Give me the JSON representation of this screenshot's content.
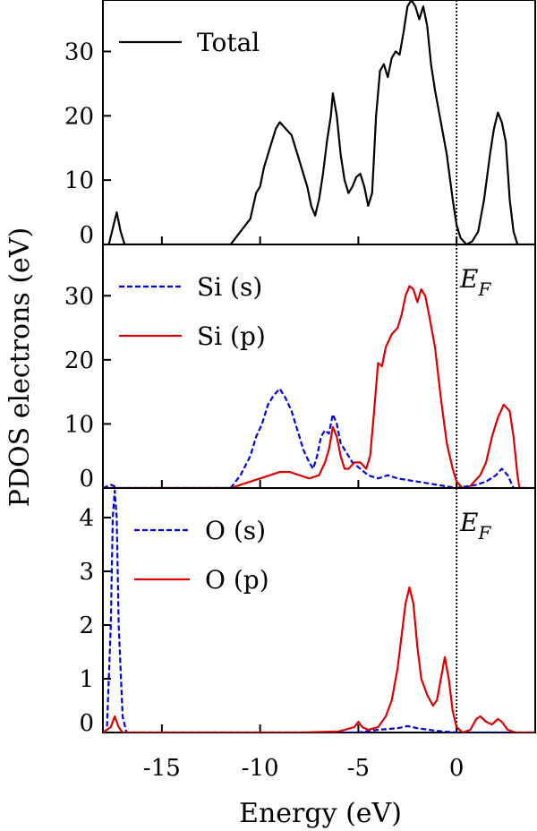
{
  "chart_data": {
    "type": "line",
    "xlabel": "Energy (eV)",
    "ylabel": "PDOS electrons (eV)",
    "xlim": [
      -18,
      4
    ],
    "xticks": [
      -15,
      -10,
      -5,
      0
    ],
    "fermi_level": 0,
    "fermi_label": "E",
    "fermi_label_sub": "F",
    "panels": [
      {
        "ylim": [
          0,
          38
        ],
        "yticks": [
          0,
          10,
          20,
          30
        ],
        "legend_position": "top-left",
        "show_fermi_label": false,
        "series": [
          {
            "name": "Total",
            "color": "#000000",
            "dash": "solid",
            "points": [
              [
                -18,
                0
              ],
              [
                -17.7,
                0
              ],
              [
                -17.5,
                2.5
              ],
              [
                -17.3,
                5
              ],
              [
                -17.1,
                2
              ],
              [
                -16.9,
                0
              ],
              [
                -12,
                0
              ],
              [
                -11.5,
                0
              ],
              [
                -11,
                2
              ],
              [
                -10.5,
                4
              ],
              [
                -10.2,
                8
              ],
              [
                -10,
                9
              ],
              [
                -9.8,
                12
              ],
              [
                -9.5,
                15
              ],
              [
                -9.2,
                18
              ],
              [
                -9,
                19
              ],
              [
                -8.7,
                18
              ],
              [
                -8.4,
                17
              ],
              [
                -8.1,
                14
              ],
              [
                -7.8,
                11
              ],
              [
                -7.6,
                9
              ],
              [
                -7.4,
                6
              ],
              [
                -7.2,
                4.5
              ],
              [
                -7,
                7
              ],
              [
                -6.8,
                11
              ],
              [
                -6.6,
                16
              ],
              [
                -6.4,
                20
              ],
              [
                -6.3,
                23.5
              ],
              [
                -6.1,
                20
              ],
              [
                -5.9,
                14
              ],
              [
                -5.7,
                10
              ],
              [
                -5.5,
                8
              ],
              [
                -5.3,
                9
              ],
              [
                -5.1,
                10.5
              ],
              [
                -4.9,
                11
              ],
              [
                -4.7,
                9
              ],
              [
                -4.5,
                6
              ],
              [
                -4.3,
                8
              ],
              [
                -4.1,
                20
              ],
              [
                -3.9,
                27
              ],
              [
                -3.7,
                28
              ],
              [
                -3.5,
                26
              ],
              [
                -3.3,
                29
              ],
              [
                -3.1,
                30
              ],
              [
                -2.9,
                29.5
              ],
              [
                -2.7,
                33
              ],
              [
                -2.5,
                37
              ],
              [
                -2.3,
                38
              ],
              [
                -2.1,
                37
              ],
              [
                -1.9,
                35
              ],
              [
                -1.7,
                37
              ],
              [
                -1.5,
                34
              ],
              [
                -1.3,
                28
              ],
              [
                -1.1,
                24
              ],
              [
                -0.8,
                19
              ],
              [
                -0.5,
                14
              ],
              [
                -0.2,
                7
              ],
              [
                0,
                3
              ],
              [
                0.2,
                1
              ],
              [
                0.5,
                0
              ],
              [
                0.8,
                0.5
              ],
              [
                1.1,
                2
              ],
              [
                1.4,
                7
              ],
              [
                1.7,
                14
              ],
              [
                1.9,
                18
              ],
              [
                2.1,
                20.5
              ],
              [
                2.3,
                19
              ],
              [
                2.5,
                16
              ],
              [
                2.7,
                7
              ],
              [
                2.9,
                2
              ],
              [
                3.1,
                0
              ],
              [
                4,
                0
              ]
            ]
          }
        ]
      },
      {
        "ylim": [
          0,
          38
        ],
        "yticks": [
          0,
          10,
          20,
          30
        ],
        "legend_position": "top-left",
        "show_fermi_label": true,
        "series": [
          {
            "name": "Si (s)",
            "color": "#0000dd",
            "dash": "dashed",
            "points": [
              [
                -18,
                0
              ],
              [
                -17.6,
                0.5
              ],
              [
                -17.2,
                0
              ],
              [
                -11.5,
                0
              ],
              [
                -11,
                2
              ],
              [
                -10.5,
                5
              ],
              [
                -10.2,
                8
              ],
              [
                -9.9,
                10
              ],
              [
                -9.6,
                13
              ],
              [
                -9.3,
                14.5
              ],
              [
                -9,
                15.5
              ],
              [
                -8.7,
                14
              ],
              [
                -8.4,
                12
              ],
              [
                -8.1,
                9
              ],
              [
                -7.8,
                6
              ],
              [
                -7.5,
                4
              ],
              [
                -7.3,
                3
              ],
              [
                -7.1,
                5
              ],
              [
                -6.9,
                8
              ],
              [
                -6.7,
                9
              ],
              [
                -6.5,
                8.5
              ],
              [
                -6.3,
                11.5
              ],
              [
                -6.1,
                10
              ],
              [
                -5.9,
                7
              ],
              [
                -5.7,
                6
              ],
              [
                -5.5,
                5
              ],
              [
                -5.3,
                4
              ],
              [
                -5.1,
                3.5
              ],
              [
                -4.9,
                3
              ],
              [
                -4.5,
                2
              ],
              [
                -4,
                1.5
              ],
              [
                -3.5,
                2
              ],
              [
                -3,
                1.5
              ],
              [
                -2,
                1
              ],
              [
                -1,
                0.5
              ],
              [
                0,
                0
              ],
              [
                1,
                0.5
              ],
              [
                1.5,
                1
              ],
              [
                2,
                2
              ],
              [
                2.3,
                3
              ],
              [
                2.6,
                2
              ],
              [
                2.9,
                0
              ],
              [
                3.5,
                0
              ]
            ]
          },
          {
            "name": "Si (p)",
            "color": "#dd0000",
            "dash": "solid",
            "points": [
              [
                -18,
                0
              ],
              [
                -11.5,
                0
              ],
              [
                -11,
                0.5
              ],
              [
                -10.5,
                1
              ],
              [
                -10,
                1.5
              ],
              [
                -9.5,
                2
              ],
              [
                -9,
                2.5
              ],
              [
                -8.5,
                2.5
              ],
              [
                -8,
                2
              ],
              [
                -7.5,
                1.5
              ],
              [
                -7,
                2
              ],
              [
                -6.7,
                4
              ],
              [
                -6.5,
                6
              ],
              [
                -6.3,
                9.5
              ],
              [
                -6.1,
                8
              ],
              [
                -5.9,
                5
              ],
              [
                -5.7,
                3
              ],
              [
                -5.5,
                3
              ],
              [
                -5.2,
                4
              ],
              [
                -4.9,
                4
              ],
              [
                -4.6,
                3
              ],
              [
                -4.4,
                5
              ],
              [
                -4.2,
                12
              ],
              [
                -4,
                19.5
              ],
              [
                -3.8,
                19
              ],
              [
                -3.6,
                22
              ],
              [
                -3.3,
                24
              ],
              [
                -3,
                25
              ],
              [
                -2.8,
                27
              ],
              [
                -2.6,
                30
              ],
              [
                -2.4,
                31.5
              ],
              [
                -2.2,
                31
              ],
              [
                -2,
                29
              ],
              [
                -1.8,
                31
              ],
              [
                -1.6,
                30
              ],
              [
                -1.4,
                27
              ],
              [
                -1.1,
                22
              ],
              [
                -0.8,
                14
              ],
              [
                -0.5,
                7
              ],
              [
                -0.2,
                3
              ],
              [
                0,
                1
              ],
              [
                0.3,
                0
              ],
              [
                0.6,
                0
              ],
              [
                0.9,
                1
              ],
              [
                1.2,
                2
              ],
              [
                1.5,
                4
              ],
              [
                1.8,
                8
              ],
              [
                2.1,
                11
              ],
              [
                2.4,
                13
              ],
              [
                2.7,
                12
              ],
              [
                2.9,
                8
              ],
              [
                3.1,
                2
              ],
              [
                3.2,
                0
              ],
              [
                4,
                0
              ]
            ]
          }
        ]
      },
      {
        "ylim": [
          0,
          4.55
        ],
        "yticks": [
          0,
          1,
          2,
          3,
          4
        ],
        "legend_position": "top-left",
        "show_fermi_label": true,
        "series": [
          {
            "name": "O (s)",
            "color": "#0000dd",
            "dash": "dashed",
            "points": [
              [
                -18,
                0
              ],
              [
                -17.8,
                0.05
              ],
              [
                -17.6,
                2
              ],
              [
                -17.5,
                4
              ],
              [
                -17.4,
                4.5
              ],
              [
                -17.3,
                4
              ],
              [
                -17.2,
                2
              ],
              [
                -17,
                0.3
              ],
              [
                -16.8,
                0
              ],
              [
                -5,
                0
              ],
              [
                -4,
                0.05
              ],
              [
                -3,
                0.08
              ],
              [
                -2.5,
                0.12
              ],
              [
                -2,
                0.08
              ],
              [
                -1,
                0.03
              ],
              [
                0,
                0
              ],
              [
                1,
                0
              ],
              [
                4,
                0
              ]
            ]
          },
          {
            "name": "O (p)",
            "color": "#dd0000",
            "dash": "solid",
            "points": [
              [
                -18,
                0
              ],
              [
                -17.6,
                0.1
              ],
              [
                -17.4,
                0.3
              ],
              [
                -17.2,
                0.1
              ],
              [
                -17,
                0
              ],
              [
                -8,
                0
              ],
              [
                -6,
                0.02
              ],
              [
                -5.2,
                0.1
              ],
              [
                -5,
                0.2
              ],
              [
                -4.8,
                0.1
              ],
              [
                -4.5,
                0.05
              ],
              [
                -4,
                0.1
              ],
              [
                -3.6,
                0.3
              ],
              [
                -3.3,
                0.6
              ],
              [
                -3,
                1.2
              ],
              [
                -2.8,
                1.8
              ],
              [
                -2.6,
                2.4
              ],
              [
                -2.4,
                2.7
              ],
              [
                -2.2,
                2.4
              ],
              [
                -2,
                1.6
              ],
              [
                -1.8,
                1
              ],
              [
                -1.5,
                0.7
              ],
              [
                -1.2,
                0.5
              ],
              [
                -1,
                0.6
              ],
              [
                -0.8,
                1
              ],
              [
                -0.6,
                1.4
              ],
              [
                -0.4,
                1
              ],
              [
                -0.2,
                0.4
              ],
              [
                0,
                0.1
              ],
              [
                0.3,
                0
              ],
              [
                0.7,
                0.05
              ],
              [
                1,
                0.25
              ],
              [
                1.2,
                0.3
              ],
              [
                1.5,
                0.2
              ],
              [
                1.8,
                0.15
              ],
              [
                2.1,
                0.25
              ],
              [
                2.3,
                0.2
              ],
              [
                2.6,
                0.05
              ],
              [
                3,
                0
              ],
              [
                4,
                0
              ]
            ]
          }
        ]
      }
    ]
  }
}
